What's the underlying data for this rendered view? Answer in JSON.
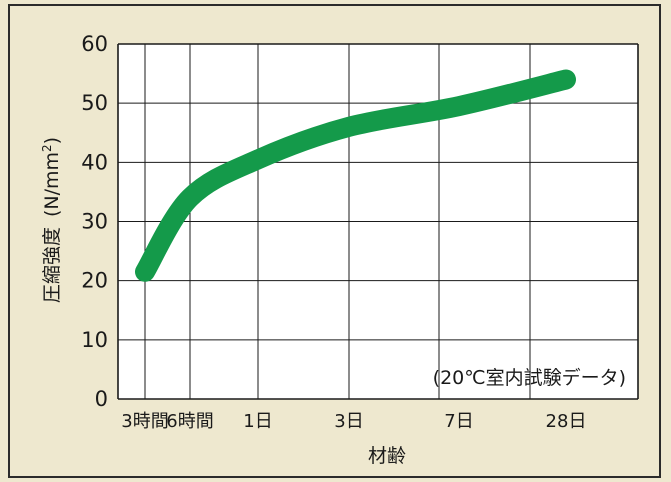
{
  "chart_data": {
    "type": "line",
    "title": "",
    "xlabel": "材齢",
    "ylabel": "圧縮強度（N/mm²)",
    "ylabel_main": "圧縮強度",
    "ylabel_unit": "(N/mm",
    "ylabel_sup": "2",
    "ylabel_close": ")",
    "annotation": "(20℃室内試験データ)",
    "ylim": [
      0,
      60
    ],
    "yticks": [
      0,
      10,
      20,
      30,
      40,
      50,
      60
    ],
    "grid": true,
    "x_scale": "categorical",
    "x_tick_labels": [
      "3時間",
      "6時間",
      "1日",
      "3日",
      "7日",
      "28日"
    ],
    "series": [
      {
        "color": "#149a4a",
        "x": [
          "3時間",
          "6時間",
          "1日",
          "3日",
          "7日",
          "28日"
        ],
        "y": [
          21.5,
          34,
          40.5,
          46,
          49.5,
          54
        ]
      }
    ]
  },
  "colors": {
    "background": "#eee8cf",
    "plot_area": "#ffffff",
    "grid": "#1a1a1a",
    "curve": "#149a4a"
  }
}
